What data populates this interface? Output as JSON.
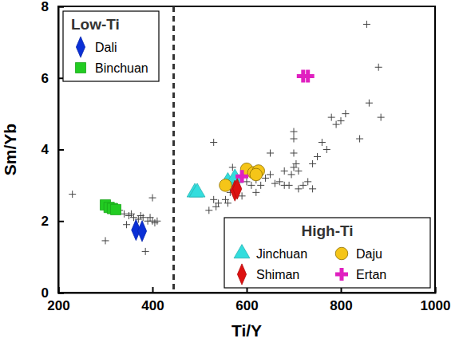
{
  "chart_data": {
    "type": "scatter",
    "x_label": "Ti/Y",
    "y_label": "Sm/Yb",
    "xlim": [
      200,
      1000
    ],
    "xticks": [
      200,
      400,
      600,
      800,
      1000
    ],
    "ylim": [
      0,
      8
    ],
    "yticks": [
      0,
      2,
      4,
      6,
      8
    ],
    "grid": false,
    "annotations": [
      {
        "type": "vline",
        "x": 445,
        "line_style": "dashed"
      }
    ],
    "series": [
      {
        "color": "#444444",
        "marker": "plus",
        "x": [
          230,
          300,
          330,
          340,
          345,
          350,
          355,
          360,
          370,
          375,
          380,
          385,
          390,
          395,
          400,
          400,
          405,
          410,
          520,
          530,
          535,
          540,
          555,
          560,
          565,
          570,
          575,
          580,
          590,
          600,
          610,
          620,
          630,
          640,
          650,
          660,
          670,
          680,
          690,
          695,
          700,
          700,
          700,
          705,
          710,
          710,
          720,
          730,
          740,
          750,
          760,
          770,
          780,
          790,
          800,
          810,
          840,
          855,
          860,
          880,
          885,
          530,
          650,
          560,
          700,
          740,
          620,
          680
        ],
        "values": [
          2.75,
          1.45,
          2.3,
          2.2,
          1.9,
          2.15,
          2.2,
          2.1,
          2.05,
          2.15,
          2.1,
          1.15,
          2.0,
          2.1,
          2.0,
          2.65,
          1.95,
          2.0,
          2.3,
          2.6,
          2.4,
          2.5,
          2.6,
          2.5,
          2.8,
          3.5,
          3.0,
          2.9,
          2.7,
          3.1,
          3.0,
          2.8,
          3.0,
          3.2,
          3.3,
          3.05,
          3.1,
          3.4,
          3.0,
          3.3,
          3.5,
          4.5,
          4.3,
          3.6,
          3.4,
          2.9,
          3.0,
          3.1,
          3.6,
          3.8,
          4.2,
          4.0,
          4.9,
          4.7,
          4.8,
          5.0,
          4.3,
          7.5,
          5.3,
          6.3,
          4.9,
          4.2,
          3.9,
          3.2,
          3.9,
          2.9,
          3.15,
          3.0
        ]
      },
      {
        "name": "Dali",
        "color": "#0a2fd6",
        "marker": "diamond",
        "x": [
          365,
          378
        ],
        "values": [
          1.75,
          1.72
        ]
      },
      {
        "name": "Binchuan",
        "color": "#22cc22",
        "marker": "square",
        "x": [
          300,
          308,
          315,
          322
        ],
        "values": [
          2.45,
          2.38,
          2.35,
          2.32
        ]
      },
      {
        "name": "Jinchuan",
        "color": "#33dddd",
        "marker": "triangle",
        "x": [
          490,
          495,
          560,
          575
        ],
        "values": [
          2.8,
          2.8,
          3.1,
          3.2
        ]
      },
      {
        "name": "Daju",
        "color": "#f5c518",
        "marker": "circle",
        "x": [
          555,
          600,
          615,
          625,
          620
        ],
        "values": [
          3.0,
          3.45,
          3.35,
          3.4,
          3.3
        ]
      },
      {
        "name": "Shiman",
        "color": "#dd1111",
        "marker": "diamond",
        "x": [
          575,
          580
        ],
        "values": [
          2.85,
          2.9
        ]
      },
      {
        "name": "Ertan",
        "color": "#e020c0",
        "marker": "plus",
        "x": [
          720,
          730,
          590
        ],
        "values": [
          6.05,
          6.05,
          3.25
        ]
      }
    ],
    "legend_groups": [
      {
        "title": "Low-Ti",
        "legend": "upper left",
        "series": [
          1,
          2
        ]
      },
      {
        "title": "High-Ti",
        "legend": "lower right",
        "series": [
          3,
          4,
          5,
          6
        ]
      }
    ]
  }
}
